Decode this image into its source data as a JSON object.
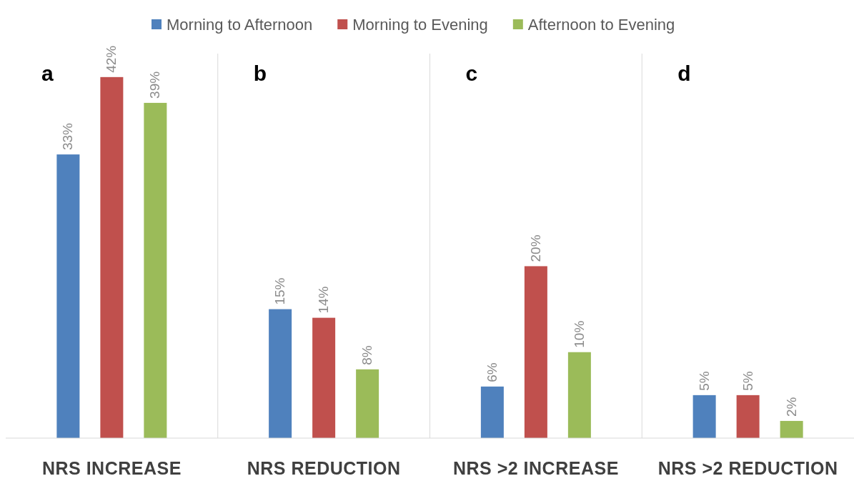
{
  "chart_data": {
    "type": "bar",
    "categories": [
      "NRS INCREASE",
      "NRS REDUCTION",
      "NRS >2 INCREASE",
      "NRS >2 REDUCTION"
    ],
    "series": [
      {
        "name": "Morning to Afternoon",
        "color": "#4f81bd",
        "values": [
          33,
          15,
          6,
          5
        ],
        "value_labels": [
          "33%",
          "15%",
          "6%",
          "5%"
        ]
      },
      {
        "name": "Morning to Evening",
        "color": "#c0504d",
        "values": [
          42,
          14,
          20,
          5
        ],
        "value_labels": [
          "42%",
          "14%",
          "20%",
          "5%"
        ]
      },
      {
        "name": "Afternoon to Evening",
        "color": "#9bbb59",
        "values": [
          39,
          8,
          10,
          2
        ],
        "value_labels": [
          "39%",
          "8%",
          "10%",
          "2%"
        ]
      }
    ],
    "legend": "top",
    "annotations": [
      "a",
      "b",
      "c",
      "d"
    ]
  }
}
